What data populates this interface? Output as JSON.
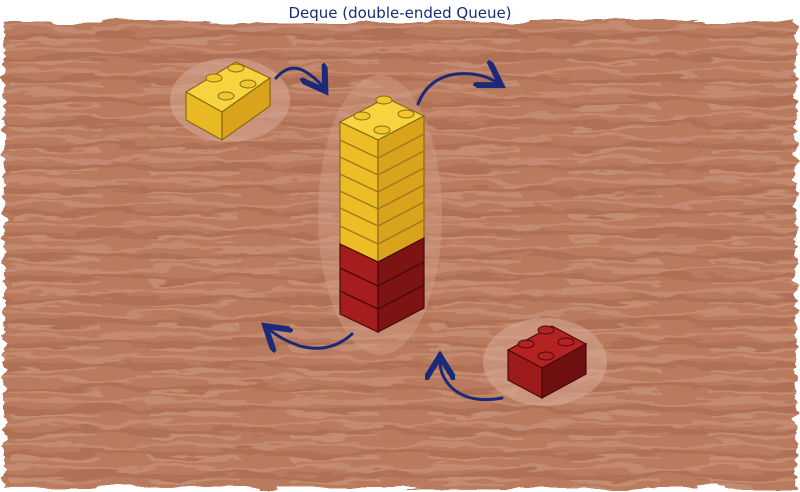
{
  "title": "Deque (double-ended Queue)",
  "colors": {
    "background_wash": "#b5775a",
    "background_light": "#c98f72",
    "paper": "#ffffff",
    "yellow_brick": "#f2c62e",
    "yellow_shade": "#d9a41c",
    "red_brick": "#9e1b1b",
    "red_shade": "#6f0f10",
    "arrow": "#1b2a78"
  },
  "icons": [
    "yellow-brick-icon",
    "red-brick-icon",
    "curved-arrow-icon"
  ],
  "stack": {
    "yellow_layers": 7,
    "red_layers": 3
  }
}
